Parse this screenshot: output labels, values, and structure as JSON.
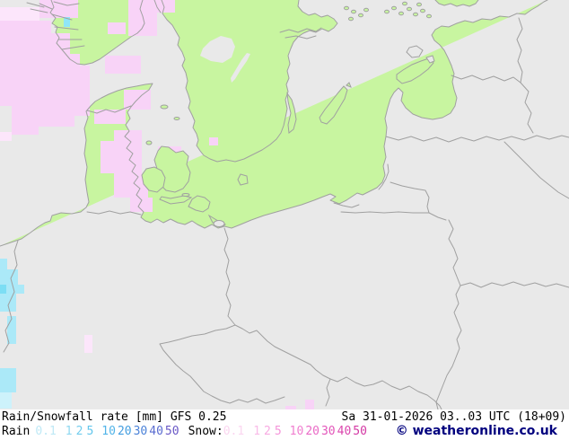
{
  "map": {
    "colors": {
      "sea": "#e9e9e9",
      "land": "#c8f5a0",
      "coast": "#a0a0a0",
      "snow": "#f8d3f7",
      "snow_light": "#fce6fb",
      "rain": "#abe9f8",
      "rain_mid": "#7cdef4",
      "rain_light": "#cdf2fb",
      "rain_dot": "#8fe6f7"
    }
  },
  "legend": {
    "title": "Rain/Snowfall rate [mm] GFS 0.25",
    "datetime": "Sa 31-01-2026 03..03 UTC (18+09)",
    "rain_label": "Rain",
    "snow_label": "Snow:",
    "rain_scale": [
      {
        "value": "0.1",
        "color": "#bfe9f6"
      },
      {
        "value": "1",
        "color": "#8fd8f1"
      },
      {
        "value": "2",
        "color": "#72cdee"
      },
      {
        "value": "5",
        "color": "#62c6ec"
      },
      {
        "value": "10",
        "color": "#52b4e8"
      },
      {
        "value": "20",
        "color": "#429de0"
      },
      {
        "value": "30",
        "color": "#4b82d8"
      },
      {
        "value": "40",
        "color": "#5a6cd0"
      },
      {
        "value": "50",
        "color": "#6a58c6"
      }
    ],
    "snow_scale": [
      {
        "value": "0.1",
        "color": "#fbd6f0"
      },
      {
        "value": "1",
        "color": "#f9bce8"
      },
      {
        "value": "2",
        "color": "#f8aae2"
      },
      {
        "value": "5",
        "color": "#f595da"
      },
      {
        "value": "10",
        "color": "#f07fd0"
      },
      {
        "value": "20",
        "color": "#ea6ac6"
      },
      {
        "value": "30",
        "color": "#e356ba"
      },
      {
        "value": "40",
        "color": "#db46ae"
      },
      {
        "value": "50",
        "color": "#d338a4"
      }
    ],
    "copyright": "© weatheronline.co.uk",
    "copyright_color": "#00007e"
  }
}
